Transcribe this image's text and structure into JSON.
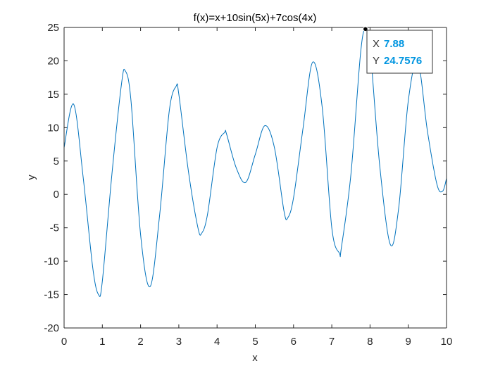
{
  "chart_data": {
    "type": "line",
    "title": "f(x)=x+10sin(5x)+7cos(4x)",
    "xlabel": "x",
    "ylabel": "y",
    "xlim": [
      0,
      10
    ],
    "ylim": [
      -20,
      25
    ],
    "xticks": [
      0,
      1,
      2,
      3,
      4,
      5,
      6,
      7,
      8,
      9,
      10
    ],
    "xtick_labels": [
      "0",
      "1",
      "2",
      "3",
      "4",
      "5",
      "6",
      "7",
      "8",
      "9",
      "10"
    ],
    "yticks": [
      -20,
      -15,
      -10,
      -5,
      0,
      5,
      10,
      15,
      20,
      25
    ],
    "ytick_labels": [
      "-20",
      "-15",
      "-10",
      "-5",
      "0",
      "5",
      "10",
      "15",
      "20",
      "25"
    ],
    "grid": false,
    "legend": "none",
    "series": [
      {
        "color": "#0072bd",
        "x": [
          0,
          0.25,
          0.5,
          0.75,
          0.9,
          1.0,
          1.25,
          1.5,
          1.6,
          1.75,
          2.0,
          2.25,
          2.5,
          2.75,
          2.93,
          3.0,
          3.25,
          3.5,
          3.6,
          3.75,
          4.0,
          4.2,
          4.25,
          4.5,
          4.75,
          5.0,
          5.25,
          5.5,
          5.75,
          5.85,
          6.0,
          6.25,
          6.5,
          6.75,
          7.0,
          7.2,
          7.25,
          7.5,
          7.75,
          7.88,
          8.0,
          8.25,
          8.53,
          8.75,
          9.0,
          9.25,
          9.5,
          9.75,
          9.9,
          10.0
        ],
        "y": [
          7.0,
          13.5,
          2.5,
          -11.0,
          -15.0,
          -13.0,
          3.0,
          16.5,
          18.5,
          14.0,
          -6.0,
          -13.8,
          -3.0,
          12.5,
          16.2,
          15.0,
          3.5,
          -5.0,
          -5.8,
          -3.0,
          7.0,
          9.3,
          9.0,
          4.0,
          1.8,
          6.0,
          10.3,
          7.0,
          -2.5,
          -3.5,
          -0.5,
          10.0,
          19.8,
          13.0,
          -5.0,
          -8.8,
          -8.0,
          3.0,
          21.0,
          24.7576,
          22.0,
          4.5,
          -7.5,
          -2.0,
          14.0,
          19.8,
          9.5,
          1.5,
          0.5,
          2.4
        ]
      }
    ]
  },
  "datatip": {
    "x_label": "X",
    "x_value": "7.88",
    "y_label": "Y",
    "y_value": "24.7576",
    "x": 7.88,
    "y": 24.7576,
    "value_color": "#0095e0"
  }
}
